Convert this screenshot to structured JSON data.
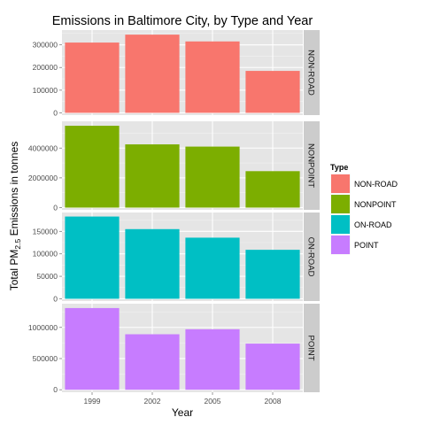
{
  "chart_data": {
    "type": "bar",
    "title": "Emissions in Baltimore City, by Type and Year",
    "xlabel": "Year",
    "ylabel_prefix": "Total PM",
    "ylabel_sub": "2.5",
    "ylabel_suffix": " Emissions in tonnes",
    "categories": [
      "1999",
      "2002",
      "2005",
      "2008"
    ],
    "grid": true,
    "facet": "rows",
    "legend": {
      "title": "Type",
      "placement": "right",
      "entries": [
        "NON-ROAD",
        "NONPOINT",
        "ON-ROAD",
        "POINT"
      ]
    },
    "series": [
      {
        "name": "NON-ROAD",
        "color": "#F8766D",
        "values": [
          310000,
          345000,
          315000,
          185000
        ],
        "ylim": [
          -10000,
          365000
        ],
        "ticks": [
          0,
          100000,
          200000,
          300000
        ],
        "tick_labels": [
          "0",
          "100000",
          "200000",
          "300000"
        ]
      },
      {
        "name": "NONPOINT",
        "color": "#7CAE00",
        "values": [
          5500000,
          4250000,
          4100000,
          2450000
        ],
        "ylim": [
          -150000,
          5800000
        ],
        "ticks": [
          0,
          2000000,
          4000000
        ],
        "tick_labels": [
          "0",
          "2000000",
          "4000000"
        ]
      },
      {
        "name": "ON-ROAD",
        "color": "#00BFC4",
        "values": [
          183000,
          155000,
          136000,
          109000
        ],
        "ylim": [
          -5000,
          192000
        ],
        "ticks": [
          0,
          50000,
          100000,
          150000
        ],
        "tick_labels": [
          "0",
          "50000",
          "100000",
          "150000"
        ]
      },
      {
        "name": "POINT",
        "color": "#C77CFF",
        "values": [
          1310000,
          890000,
          970000,
          740000
        ],
        "ylim": [
          -40000,
          1380000
        ],
        "ticks": [
          0,
          500000,
          1000000
        ],
        "tick_labels": [
          "0",
          "500000",
          "1000000"
        ]
      }
    ]
  }
}
